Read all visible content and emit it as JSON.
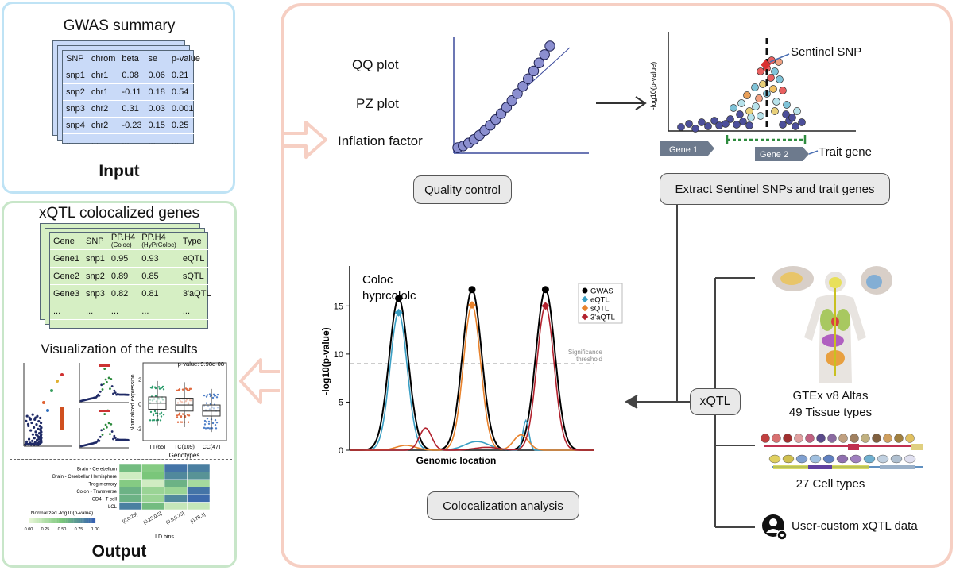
{
  "input": {
    "title": "GWAS summary",
    "label": "Input",
    "table": {
      "columns": [
        "SNP",
        "chrom",
        "beta",
        "se",
        "p-value"
      ],
      "rows": [
        [
          "snp1",
          "chr1",
          "0.08",
          "0.06",
          "0.21"
        ],
        [
          "snp2",
          "chr1",
          "-0.11",
          "0.18",
          "0.54"
        ],
        [
          "snp3",
          "chr2",
          "0.31",
          "0.03",
          "0.001"
        ],
        [
          "snp4",
          "chr2",
          "-0.23",
          "0.15",
          "0.25"
        ],
        [
          "...",
          "...",
          "...",
          "...",
          "..."
        ]
      ]
    }
  },
  "output": {
    "title": "xQTL colocalized genes",
    "label": "Output",
    "visualization_title": "Visualization of the results",
    "table": {
      "columns": [
        "Gene",
        "SNP",
        "PP.H4",
        "PP.H4",
        "Type"
      ],
      "column_subs": [
        "",
        "",
        "(Coloc)",
        "(HyPrColoc)",
        ""
      ],
      "rows": [
        [
          "Gene1",
          "snp1",
          "0.95",
          "0.93",
          "eQTL"
        ],
        [
          "Gene2",
          "snp2",
          "0.89",
          "0.85",
          "sQTL"
        ],
        [
          "Gene3",
          "snp3",
          "0.82",
          "0.81",
          "3'aQTL"
        ],
        [
          "...",
          "...",
          "...",
          "...",
          "..."
        ]
      ]
    },
    "boxplot": {
      "pvalue": "p-value: 9.98e-08",
      "ylabel": "Normalized expression",
      "xlabel": "Genotypes",
      "groups": [
        "TT(65)",
        "TC(109)",
        "CC(47)"
      ],
      "medians": [
        0.05,
        -0.1,
        -0.6
      ],
      "q1": [
        -0.45,
        -0.6,
        -1.0
      ],
      "q3": [
        0.55,
        0.45,
        -0.1
      ],
      "yticks": [
        "2",
        "0",
        "-2"
      ]
    },
    "heatmap": {
      "rows": [
        "Brain - Cerebellum",
        "Brain - Cerebellar Hemisphere",
        "Treg memory",
        "Colon - Transverse",
        "CD4+ T cell",
        "LCL"
      ],
      "cols": [
        "(0,0.25]",
        "(0.25,0.5]",
        "(0.5,0.75]",
        "(0.75,1]"
      ],
      "values": [
        [
          0.55,
          0.45,
          0.9,
          0.85
        ],
        [
          0.1,
          0.5,
          0.8,
          0.75
        ],
        [
          0.45,
          0.1,
          0.6,
          0.3
        ],
        [
          0.6,
          0.35,
          0.35,
          0.9
        ],
        [
          0.6,
          0.35,
          0.8,
          0.95
        ],
        [
          0.85,
          0.55,
          0.15,
          0.15
        ]
      ],
      "xlabel": "LD bins",
      "legend_title": "Normalized -log10(p-value)",
      "legend_ticks": [
        "0.00",
        "0.25",
        "0.50",
        "0.75",
        "1.00"
      ]
    }
  },
  "qc": {
    "items": [
      "QQ plot",
      "PZ plot",
      "Inflation factor"
    ],
    "button": "Quality control"
  },
  "extract": {
    "button": "Extract Sentinel SNPs and trait genes",
    "sentinel_label": "Sentinel SNP",
    "ylabel": "-log10(p-value)",
    "gene1": "Gene 1",
    "gene2": "Gene 2",
    "trait_gene": "Trait gene"
  },
  "coloc": {
    "title_line1": "Coloc",
    "title_line2": "hyprcololc",
    "ylabel": "-log10(p-value)",
    "xlabel": "Genomic location",
    "threshold_label_1": "Significance",
    "threshold_label_2": "threshold",
    "yticks": [
      0,
      5,
      10,
      15
    ],
    "threshold": 9,
    "button": "Colocalization analysis",
    "legend": [
      {
        "name": "GWAS",
        "color": "#000000"
      },
      {
        "name": "eQTL",
        "color": "#3a9fc4"
      },
      {
        "name": "sQTL",
        "color": "#e8822c"
      },
      {
        "name": "3'aQTL",
        "color": "#b2222e"
      }
    ],
    "peaks": [
      {
        "x": 0.2,
        "gwas": 15.8,
        "qtl": 14.3,
        "qtl_color": "#3a9fc4"
      },
      {
        "x": 0.5,
        "gwas": 16.7,
        "qtl": 15.1,
        "qtl_color": "#e8822c"
      },
      {
        "x": 0.8,
        "gwas": 16.7,
        "qtl": 15.0,
        "qtl_color": "#b2222e"
      }
    ]
  },
  "xqtl": {
    "label": "xQTL",
    "gtex_line1": "GTEx v8 Altas",
    "gtex_line2": "49 Tissue types",
    "cell_types": "27 Cell types",
    "user_custom": "User-custom xQTL data"
  },
  "colors": {
    "input_border": "#bfe3f5",
    "output_border": "#c8e6c9",
    "main_border": "#f6cfc3",
    "input_table": "#c9daf8",
    "output_table": "#d6efc4",
    "qq_points": "#8b8fd0"
  }
}
